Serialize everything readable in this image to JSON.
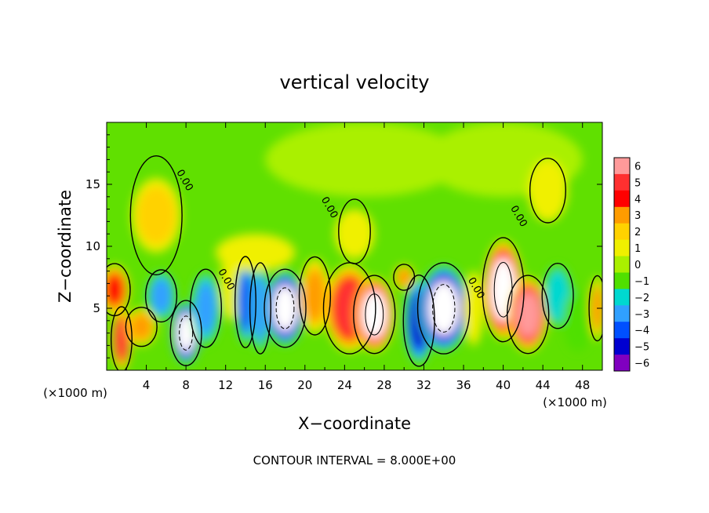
{
  "chart_data": {
    "type": "heatmap",
    "title": "vertical velocity",
    "xlabel": "X−coordinate",
    "ylabel": "Z−coordinate",
    "x_unit_left": "(×1000 m)",
    "x_unit_right": "(×1000 m)",
    "footer": "CONTOUR INTERVAL = 8.000E+00",
    "xlim": [
      0,
      50
    ],
    "ylim": [
      0,
      20
    ],
    "x_ticks": [
      4,
      8,
      12,
      16,
      20,
      24,
      28,
      32,
      36,
      40,
      44,
      48
    ],
    "x_tick_labels": [
      "4",
      "8",
      "12",
      "16",
      "20",
      "24",
      "28",
      "32",
      "36",
      "40",
      "44",
      "48"
    ],
    "y_ticks": [
      5,
      10,
      15
    ],
    "y_tick_labels": [
      "5",
      "10",
      "15"
    ],
    "contour_labels": [
      {
        "x": 7.6,
        "z": 15.2,
        "text": "0.00"
      },
      {
        "x": 11.8,
        "z": 7.2,
        "text": "0.00"
      },
      {
        "x": 22.2,
        "z": 13.0,
        "text": "0.00"
      },
      {
        "x": 37.0,
        "z": 6.5,
        "text": "0.00"
      },
      {
        "x": 41.3,
        "z": 12.3,
        "text": "0.00"
      }
    ],
    "colorbar": {
      "levels": [
        6,
        5,
        4,
        3,
        2,
        1,
        0,
        -1,
        -2,
        -3,
        -4,
        -5,
        -6
      ],
      "labels": [
        "6",
        "5",
        "4",
        "3",
        "2",
        "1",
        "0",
        "−1",
        "−2",
        "−3",
        "−4",
        "−5",
        "−6"
      ],
      "colors": [
        "#ff9a9a",
        "#ff3030",
        "#ff0000",
        "#ff9c00",
        "#ffd200",
        "#f0f000",
        "#aaf000",
        "#50e000",
        "#00d8d0",
        "#30a0ff",
        "#0050ff",
        "#0000d0",
        "#8000c0"
      ]
    },
    "field": [
      {
        "x": 1.5,
        "z": 2.5,
        "v": 5.0,
        "rx": 1.0,
        "rz": 2.5
      },
      {
        "x": 0.8,
        "z": 6.5,
        "v": 3.5,
        "rx": 1.5,
        "rz": 2.0
      },
      {
        "x": 3.5,
        "z": 3.5,
        "v": 2.5,
        "rx": 1.5,
        "rz": 1.5
      },
      {
        "x": 5.5,
        "z": 6.0,
        "v": -3.0,
        "rx": 1.5,
        "rz": 2.0
      },
      {
        "x": 8.0,
        "z": 3.0,
        "v": -6.5,
        "rx": 1.5,
        "rz": 2.5
      },
      {
        "x": 10.0,
        "z": 5.0,
        "v": -3.0,
        "rx": 1.5,
        "rz": 3.0
      },
      {
        "x": 12.5,
        "z": 7.0,
        "v": 0.8,
        "rx": 1.0,
        "rz": 3.0
      },
      {
        "x": 14.0,
        "z": 5.5,
        "v": -4.0,
        "rx": 1.0,
        "rz": 3.5
      },
      {
        "x": 15.5,
        "z": 5.0,
        "v": -3.5,
        "rx": 1.0,
        "rz": 3.5
      },
      {
        "x": 18.0,
        "z": 5.0,
        "v": -6.5,
        "rx": 2.0,
        "rz": 3.0
      },
      {
        "x": 21.0,
        "z": 6.0,
        "v": 2.5,
        "rx": 1.5,
        "rz": 3.0
      },
      {
        "x": 24.5,
        "z": 5.0,
        "v": 5.0,
        "rx": 2.5,
        "rz": 3.5
      },
      {
        "x": 27.0,
        "z": 4.5,
        "v": 6.5,
        "rx": 2.0,
        "rz": 3.0
      },
      {
        "x": 30.0,
        "z": 7.5,
        "v": 2.5,
        "rx": 1.0,
        "rz": 1.0
      },
      {
        "x": 31.5,
        "z": 4.0,
        "v": -5.0,
        "rx": 1.5,
        "rz": 3.5
      },
      {
        "x": 34.0,
        "z": 5.0,
        "v": -6.5,
        "rx": 2.5,
        "rz": 3.5
      },
      {
        "x": 37.0,
        "z": 5.0,
        "v": 1.0,
        "rx": 1.0,
        "rz": 3.0
      },
      {
        "x": 40.0,
        "z": 6.5,
        "v": 6.5,
        "rx": 2.0,
        "rz": 4.0
      },
      {
        "x": 42.5,
        "z": 4.5,
        "v": 6.0,
        "rx": 2.0,
        "rz": 3.0
      },
      {
        "x": 45.5,
        "z": 6.0,
        "v": -2.5,
        "rx": 1.5,
        "rz": 2.5
      },
      {
        "x": 47.5,
        "z": 4.0,
        "v": -1.0,
        "rx": 1.5,
        "rz": 2.5
      },
      {
        "x": 49.5,
        "z": 5.0,
        "v": 3.0,
        "rx": 0.8,
        "rz": 2.5
      },
      {
        "x": 5.0,
        "z": 12.5,
        "v": 1.8,
        "rx": 2.5,
        "rz": 3.0
      },
      {
        "x": 26.0,
        "z": 17.0,
        "v": 0.4,
        "rx": 10.0,
        "rz": 3.0
      },
      {
        "x": 40.0,
        "z": 17.0,
        "v": 0.3,
        "rx": 8.0,
        "rz": 3.0
      },
      {
        "x": 44.5,
        "z": 14.5,
        "v": 0.7,
        "rx": 2.0,
        "rz": 2.5
      },
      {
        "x": 25.0,
        "z": 11.0,
        "v": 0.6,
        "rx": 2.0,
        "rz": 2.0
      },
      {
        "x": 15.0,
        "z": 9.5,
        "v": 0.5,
        "rx": 4.0,
        "rz": 1.5
      }
    ]
  }
}
